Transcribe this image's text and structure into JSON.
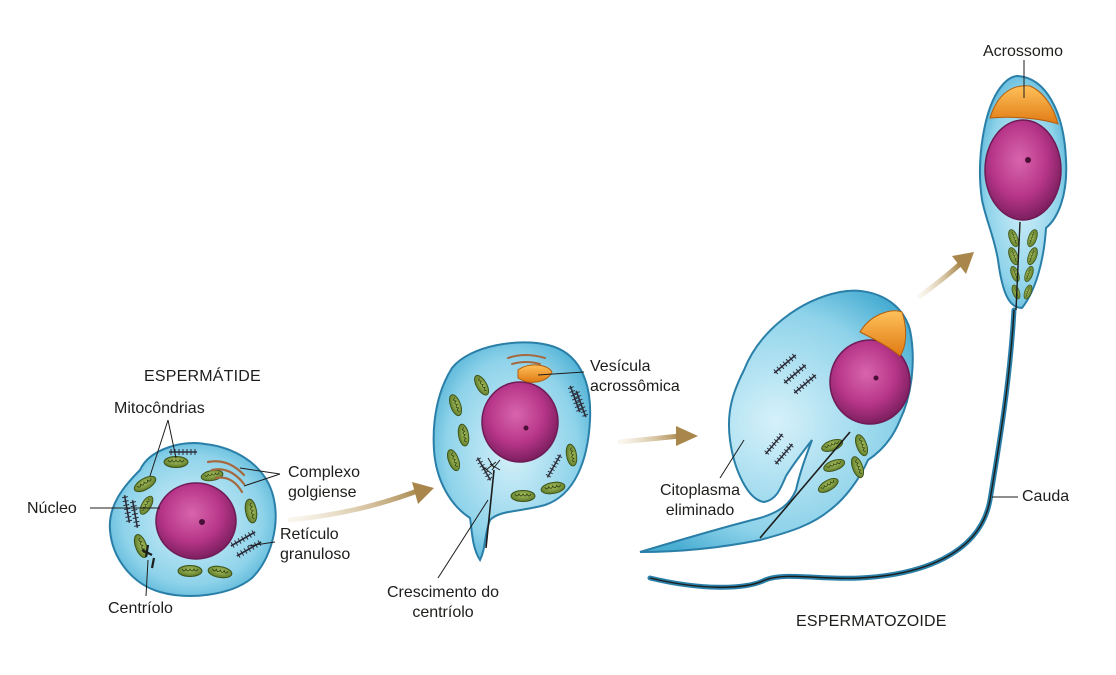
{
  "stages": {
    "spermatid_title": "ESPERMÁTIDE",
    "spermatozoon_title": "ESPERMATOZOIDE"
  },
  "labels": {
    "mitochondria": "Mitocôndrias",
    "golgi_line1": "Complexo",
    "golgi_line2": "golgiense",
    "nucleus": "Núcleo",
    "reticulum_line1": "Retículo",
    "reticulum_line2": "granuloso",
    "centriole": "Centríolo",
    "acrosomal_vesicle_line1": "Vesícula",
    "acrosomal_vesicle_line2": "acrossômica",
    "centriole_growth_line1": "Crescimento do",
    "centriole_growth_line2": "centríolo",
    "cytoplasm_line1": "Citoplasma",
    "cytoplasm_line2": "eliminado",
    "acrosome": "Acrossomo",
    "tail": "Cauda"
  },
  "colors": {
    "cytoplasm": "#8fd3ea",
    "cytoplasm_edge": "#2a7fa8",
    "nucleus": "#b8368a",
    "nucleus_edge": "#6e1a55",
    "mitochondria": "#7c9a3e",
    "acrosome": "#f39a2c",
    "arrow": "#a9874c",
    "reticulum": "#2d2d3a"
  }
}
